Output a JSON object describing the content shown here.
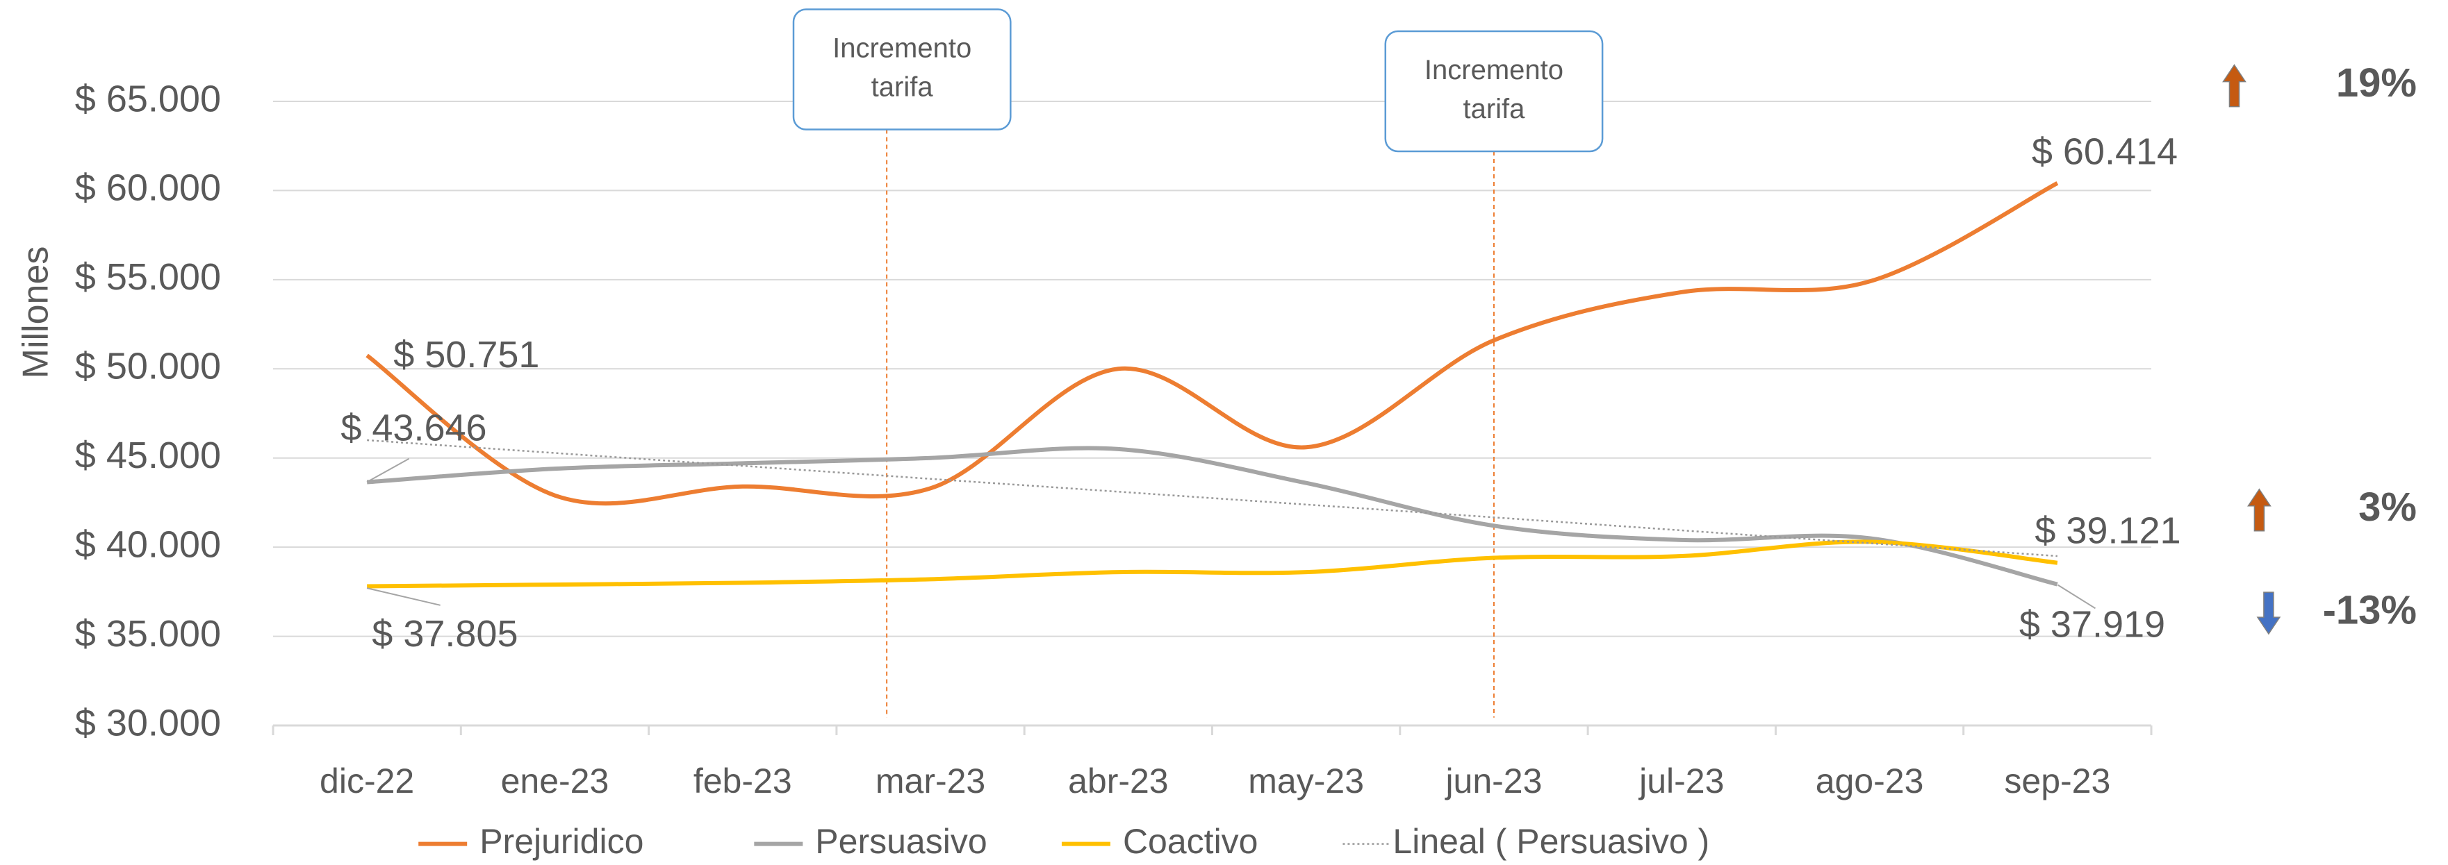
{
  "chart_data": {
    "type": "line",
    "y_label": "Millones",
    "categories": [
      "dic-22",
      "ene-23",
      "feb-23",
      "mar-23",
      "abr-23",
      "may-23",
      "jun-23",
      "jul-23",
      "ago-23",
      "sep-23"
    ],
    "series": [
      {
        "name": "Prejuridico",
        "color": "#ed7d31",
        "style": "smooth",
        "values": [
          50751,
          42900,
          43400,
          43300,
          50000,
          45600,
          51600,
          54300,
          54900,
          60414
        ],
        "value_labels": [
          "$ 50.751",
          null,
          null,
          null,
          null,
          null,
          null,
          null,
          null,
          "$ 60.414"
        ]
      },
      {
        "name": "Persuasivo",
        "color": "#a5a5a5",
        "style": "smooth",
        "values": [
          43646,
          44400,
          44700,
          45000,
          45500,
          43600,
          41200,
          40400,
          40500,
          37919
        ],
        "value_labels": [
          "$ 43.646",
          null,
          null,
          null,
          null,
          null,
          null,
          null,
          null,
          "$ 37.919"
        ]
      },
      {
        "name": "Coactivo",
        "color": "#ffc000",
        "style": "smooth",
        "values": [
          37805,
          37900,
          38000,
          38200,
          38600,
          38600,
          39400,
          39500,
          40300,
          39121
        ],
        "value_labels": [
          "$ 37.805",
          null,
          null,
          null,
          null,
          null,
          null,
          null,
          null,
          "$ 39.121"
        ]
      },
      {
        "name": "Lineal ( Persuasivo )",
        "color": "#a5a5a5",
        "style": "dotted",
        "values": [
          46000,
          45280,
          44560,
          43830,
          43110,
          42390,
          41670,
          40940,
          40220,
          39500
        ]
      }
    ],
    "ylim": [
      30000,
      65000
    ],
    "yticks": [
      {
        "value": 30000,
        "label": "$ 30.000"
      },
      {
        "value": 35000,
        "label": "$ 35.000"
      },
      {
        "value": 40000,
        "label": "$ 40.000"
      },
      {
        "value": 45000,
        "label": "$ 45.000"
      },
      {
        "value": 50000,
        "label": "$ 50.000"
      },
      {
        "value": 55000,
        "label": "$ 55.000"
      },
      {
        "value": 60000,
        "label": "$ 60.000"
      },
      {
        "value": 65000,
        "label": "$ 65.000"
      }
    ],
    "grid": true,
    "legend": "bottom",
    "annotations": [
      {
        "text": [
          "Incremento",
          "tarifa"
        ],
        "category": "mar-23"
      },
      {
        "text": [
          "Incremento",
          "tarifa"
        ],
        "category": "jun-23"
      }
    ],
    "indicators": [
      {
        "value": 19,
        "label": "19%"
      },
      {
        "value": 3,
        "label": "3%"
      },
      {
        "value": -13,
        "label": "-13%"
      }
    ]
  }
}
